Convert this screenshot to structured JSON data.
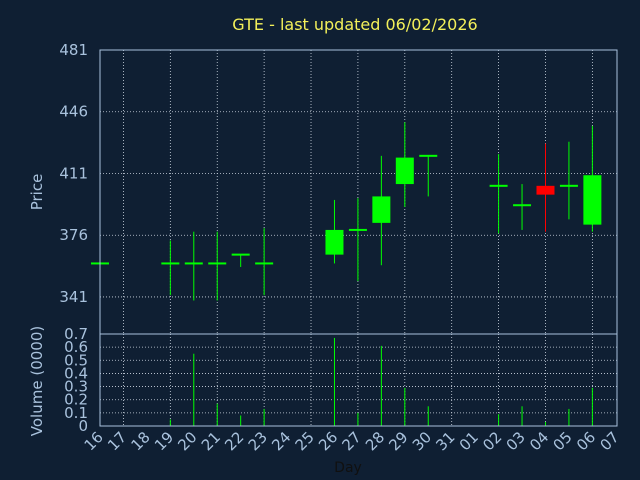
{
  "chart_data": {
    "type": "candlestick",
    "title": "GTE - last updated 06/02/2026",
    "xlabel": "Day",
    "x_ticks": [
      "16",
      "17",
      "18",
      "19",
      "20",
      "21",
      "22",
      "23",
      "24",
      "25",
      "26",
      "27",
      "28",
      "29",
      "30",
      "31",
      "01",
      "02",
      "03",
      "04",
      "05",
      "06",
      "07"
    ],
    "price_panel": {
      "ylabel": "Price",
      "ylim": [
        320,
        481
      ],
      "y_ticks": [
        341,
        376,
        411,
        446,
        481
      ],
      "grid": true,
      "candles": [
        {
          "day": "16",
          "open": 360,
          "close": 360,
          "high": 360,
          "low": 360
        },
        {
          "day": "19",
          "open": 360,
          "close": 360,
          "high": 373,
          "low": 342
        },
        {
          "day": "20",
          "open": 360,
          "close": 360,
          "high": 378,
          "low": 339
        },
        {
          "day": "21",
          "open": 360,
          "close": 360,
          "high": 378,
          "low": 339
        },
        {
          "day": "22",
          "open": 365,
          "close": 365,
          "high": 365,
          "low": 358
        },
        {
          "day": "23",
          "open": 360,
          "close": 360,
          "high": 380,
          "low": 342
        },
        {
          "day": "26",
          "open": 365,
          "close": 379,
          "high": 396,
          "low": 360
        },
        {
          "day": "27",
          "open": 379,
          "close": 379,
          "high": 397,
          "low": 350
        },
        {
          "day": "28",
          "open": 383,
          "close": 398,
          "high": 421,
          "low": 359
        },
        {
          "day": "29",
          "open": 405,
          "close": 420,
          "high": 440,
          "low": 392
        },
        {
          "day": "30",
          "open": 421,
          "close": 421,
          "high": 421,
          "low": 398
        },
        {
          "day": "02",
          "open": 404,
          "close": 404,
          "high": 422,
          "low": 377
        },
        {
          "day": "03",
          "open": 393,
          "close": 393,
          "high": 405,
          "low": 379
        },
        {
          "day": "04",
          "open": 404,
          "close": 399,
          "high": 428,
          "low": 378
        },
        {
          "day": "05",
          "open": 404,
          "close": 404,
          "high": 429,
          "low": 385
        },
        {
          "day": "06",
          "open": 382,
          "close": 410,
          "high": 438,
          "low": 378
        }
      ]
    },
    "volume_panel": {
      "ylabel": "Volume (0000)",
      "ylim": [
        0,
        0.7
      ],
      "y_ticks": [
        0,
        0.1,
        0.2,
        0.3,
        0.4,
        0.5,
        0.6,
        0.7
      ],
      "grid": true,
      "bars": [
        {
          "day": "19",
          "value": 0.05
        },
        {
          "day": "20",
          "value": 0.55
        },
        {
          "day": "21",
          "value": 0.17
        },
        {
          "day": "22",
          "value": 0.08
        },
        {
          "day": "23",
          "value": 0.13
        },
        {
          "day": "26",
          "value": 0.67
        },
        {
          "day": "27",
          "value": 0.1
        },
        {
          "day": "28",
          "value": 0.61
        },
        {
          "day": "29",
          "value": 0.29
        },
        {
          "day": "30",
          "value": 0.15
        },
        {
          "day": "02",
          "value": 0.09
        },
        {
          "day": "03",
          "value": 0.15
        },
        {
          "day": "04",
          "value": 0.03
        },
        {
          "day": "05",
          "value": 0.13
        },
        {
          "day": "06",
          "value": 0.29
        }
      ]
    },
    "colors": {
      "background": "#0f1f33",
      "plot_background": "#0f1f33",
      "grid": "#cfd8e3",
      "axis_text": "#a9c2dd",
      "title": "#f3f05a",
      "up": "#00ff00",
      "down": "#ff0000"
    }
  }
}
